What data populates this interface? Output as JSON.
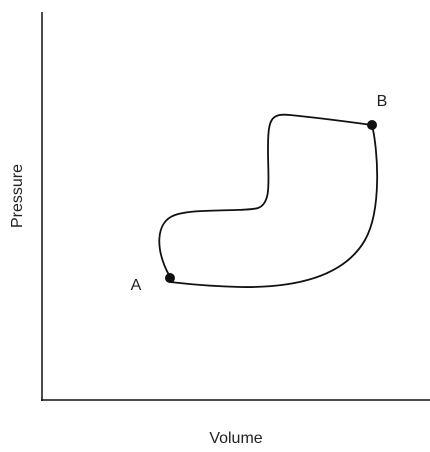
{
  "axes": {
    "y_label": "Pressure",
    "x_label": "Volume"
  },
  "points": [
    {
      "label": "A"
    },
    {
      "label": "B"
    }
  ]
}
